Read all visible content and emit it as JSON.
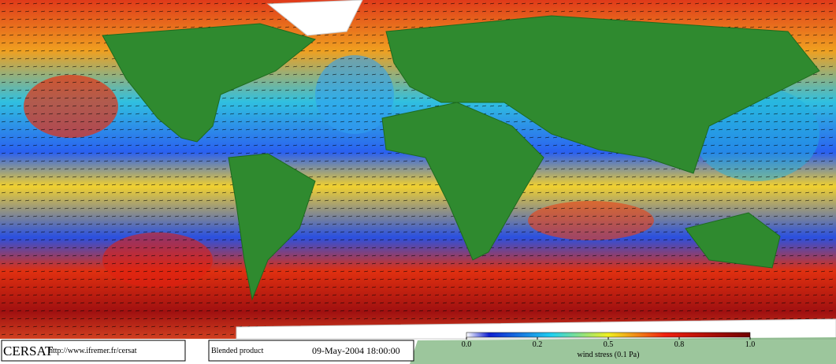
{
  "header": {
    "logo": "CERSAT",
    "url": "http://www.ifremer.fr/cersat",
    "product": "Blended product",
    "date": "09-May-2004 18:00:00"
  },
  "colorbar": {
    "label": "wind stress (0.1 Pa)",
    "lim": [
      0,
      1
    ],
    "ticks": [
      {
        "value": 0,
        "label": "0.0"
      },
      {
        "value": 0.25,
        "label": "0.2"
      },
      {
        "value": 0.5,
        "label": "0.5"
      },
      {
        "value": 0.75,
        "label": "0.8"
      },
      {
        "value": 1,
        "label": "1.0"
      }
    ]
  }
}
